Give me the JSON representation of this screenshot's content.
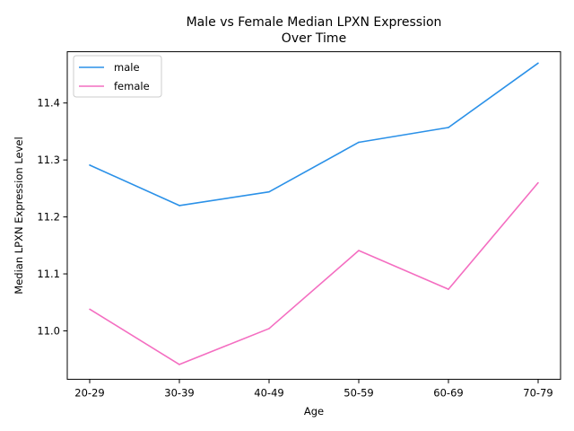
{
  "chart_data": {
    "type": "line",
    "title_line1": "Male vs Female Median LPXN Expression",
    "title_line2": "Over Time",
    "xlabel": "Age",
    "ylabel": "Median LPXN Expression Level",
    "categories": [
      "20-29",
      "30-39",
      "40-49",
      "50-59",
      "60-69",
      "70-79"
    ],
    "ylim": [
      10.915,
      11.49
    ],
    "yticks": [
      11.0,
      11.1,
      11.2,
      11.3,
      11.4
    ],
    "ytick_labels": [
      "11.0",
      "11.1",
      "11.2",
      "11.3",
      "11.4"
    ],
    "grid": false,
    "legend_position": "top-left",
    "series": [
      {
        "name": "male",
        "color": "#2b91e8",
        "values": [
          11.291,
          11.22,
          11.244,
          11.331,
          11.357,
          11.47
        ]
      },
      {
        "name": "female",
        "color": "#f46ec1",
        "values": [
          11.038,
          10.941,
          11.004,
          11.141,
          11.073,
          11.26
        ]
      }
    ]
  }
}
